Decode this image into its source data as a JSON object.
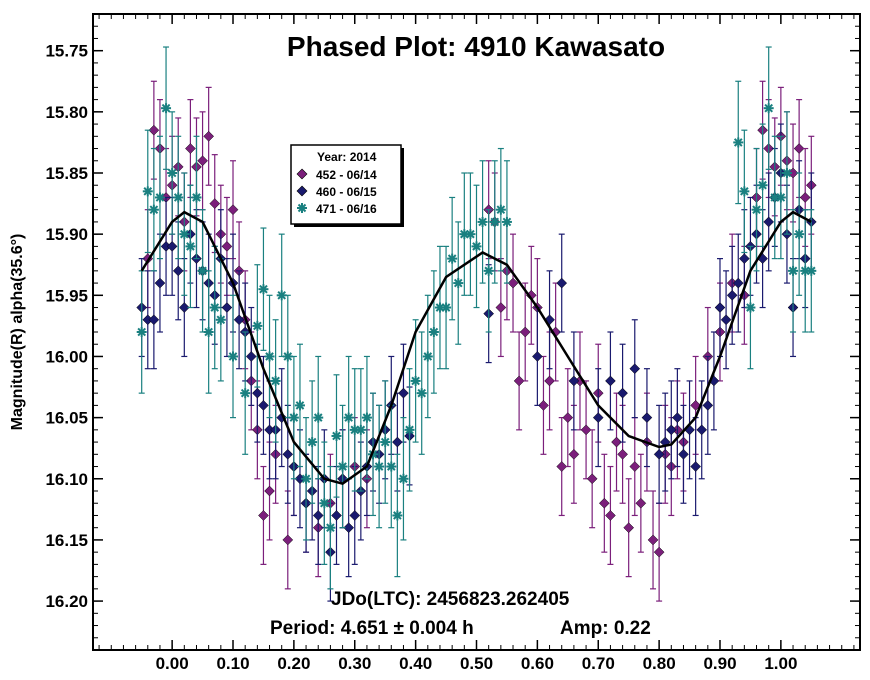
{
  "chart_data": {
    "type": "scatter",
    "title": "Phased Plot: 4910 Kawasato",
    "ylabel": "Magnitude(R) alpha(35.6°)",
    "xlabel": "",
    "xlim": [
      -0.13,
      1.13
    ],
    "ylim": [
      16.24,
      15.72
    ],
    "y_inverted": true,
    "grid": false,
    "x_ticks": [
      "0.00",
      "0.10",
      "0.20",
      "0.30",
      "0.40",
      "0.50",
      "0.60",
      "0.70",
      "0.80",
      "0.90",
      "1.00"
    ],
    "x_tick_values": [
      0.0,
      0.1,
      0.2,
      0.3,
      0.4,
      0.5,
      0.6,
      0.7,
      0.8,
      0.9,
      1.0
    ],
    "y_ticks": [
      "15.75",
      "15.80",
      "15.85",
      "15.90",
      "15.95",
      "16.00",
      "16.05",
      "16.10",
      "16.15",
      "16.20"
    ],
    "y_tick_values": [
      15.75,
      15.8,
      15.85,
      15.9,
      15.95,
      16.0,
      16.05,
      16.1,
      16.15,
      16.2
    ],
    "legend": {
      "title": "Year: 2014",
      "placement": "upper-left",
      "entries": [
        {
          "label": "452 - 06/14",
          "color": "#7b1f7b",
          "marker": "diamond"
        },
        {
          "label": "460 - 06/15",
          "color": "#1a1a6e",
          "marker": "diamond"
        },
        {
          "label": "471 - 06/16",
          "color": "#1a8080",
          "marker": "asterisk"
        }
      ]
    },
    "annotations": {
      "jd": "JDo(LTC): 2456823.262405",
      "period": "Period: 4.651 ± 0.004 h",
      "amp": "Amp: 0.22"
    },
    "fit_curve": {
      "x": [
        -0.05,
        0.0,
        0.02,
        0.05,
        0.1,
        0.15,
        0.2,
        0.25,
        0.28,
        0.32,
        0.36,
        0.4,
        0.45,
        0.51,
        0.55,
        0.6,
        0.65,
        0.7,
        0.75,
        0.8,
        0.82,
        0.86,
        0.9,
        0.95,
        1.0,
        1.02,
        1.05
      ],
      "y": [
        15.93,
        15.89,
        15.882,
        15.89,
        15.94,
        16.01,
        16.07,
        16.1,
        16.104,
        16.09,
        16.04,
        15.98,
        15.935,
        15.915,
        15.925,
        15.96,
        16.0,
        16.04,
        16.065,
        16.074,
        16.072,
        16.05,
        16.0,
        15.93,
        15.89,
        15.882,
        15.89
      ]
    },
    "series": [
      {
        "name": "452 - 06/14",
        "color": "#7b1f7b",
        "marker": "diamond",
        "error": 0.04,
        "points": [
          [
            -0.04,
            15.92
          ],
          [
            -0.03,
            15.815
          ],
          [
            -0.02,
            15.83
          ],
          [
            -0.01,
            15.87
          ],
          [
            0.0,
            15.86
          ],
          [
            0.01,
            15.845
          ],
          [
            0.02,
            15.89
          ],
          [
            0.03,
            15.83
          ],
          [
            0.04,
            15.845
          ],
          [
            0.05,
            15.84
          ],
          [
            0.06,
            15.82
          ],
          [
            0.07,
            15.875
          ],
          [
            0.08,
            15.9
          ],
          [
            0.09,
            15.91
          ],
          [
            0.1,
            15.88
          ],
          [
            0.11,
            15.93
          ],
          [
            0.12,
            15.97
          ],
          [
            0.13,
            16.02
          ],
          [
            0.14,
            16.06
          ],
          [
            0.15,
            16.13
          ],
          [
            0.16,
            16.11
          ],
          [
            0.17,
            16.08
          ],
          [
            0.19,
            16.15
          ],
          [
            0.2,
            16.09
          ],
          [
            0.22,
            16.12
          ],
          [
            0.24,
            16.14
          ],
          [
            0.26,
            16.12
          ],
          [
            0.28,
            16.1
          ],
          [
            0.3,
            16.09
          ],
          [
            0.32,
            16.1
          ],
          [
            0.52,
            15.88
          ],
          [
            0.53,
            15.89
          ],
          [
            0.54,
            15.96
          ],
          [
            0.55,
            15.93
          ],
          [
            0.56,
            15.94
          ],
          [
            0.57,
            16.02
          ],
          [
            0.58,
            15.98
          ],
          [
            0.59,
            15.95
          ],
          [
            0.6,
            15.96
          ],
          [
            0.61,
            16.04
          ],
          [
            0.62,
            16.02
          ],
          [
            0.63,
            15.98
          ],
          [
            0.64,
            16.09
          ],
          [
            0.65,
            16.05
          ],
          [
            0.66,
            16.08
          ],
          [
            0.67,
            16.02
          ],
          [
            0.68,
            16.06
          ],
          [
            0.69,
            16.1
          ],
          [
            0.7,
            16.03
          ],
          [
            0.71,
            16.12
          ],
          [
            0.72,
            16.13
          ],
          [
            0.73,
            16.07
          ],
          [
            0.74,
            16.08
          ],
          [
            0.75,
            16.14
          ],
          [
            0.76,
            16.09
          ],
          [
            0.77,
            16.12
          ],
          [
            0.78,
            16.07
          ],
          [
            0.79,
            16.15
          ],
          [
            0.8,
            16.16
          ],
          [
            0.81,
            16.08
          ],
          [
            0.82,
            16.09
          ],
          [
            0.83,
            16.06
          ],
          [
            0.84,
            16.07
          ],
          [
            0.86,
            16.04
          ],
          [
            0.88,
            16.0
          ],
          [
            0.9,
            15.98
          ],
          [
            0.92,
            15.94
          ],
          [
            0.94,
            15.95
          ],
          [
            0.96,
            15.87
          ],
          [
            0.97,
            15.815
          ],
          [
            0.98,
            15.83
          ],
          [
            0.99,
            15.845
          ],
          [
            1.0,
            15.82
          ],
          [
            1.01,
            15.84
          ],
          [
            1.02,
            15.85
          ],
          [
            1.03,
            15.83
          ],
          [
            1.04,
            15.87
          ],
          [
            1.05,
            15.86
          ]
        ]
      },
      {
        "name": "460 - 06/15",
        "color": "#1a1a6e",
        "marker": "diamond",
        "error": 0.04,
        "points": [
          [
            -0.05,
            15.96
          ],
          [
            -0.04,
            15.97
          ],
          [
            -0.03,
            15.97
          ],
          [
            -0.02,
            15.94
          ],
          [
            -0.01,
            15.91
          ],
          [
            0.0,
            15.91
          ],
          [
            0.01,
            15.93
          ],
          [
            0.02,
            15.96
          ],
          [
            0.03,
            15.9
          ],
          [
            0.04,
            15.92
          ],
          [
            0.05,
            15.93
          ],
          [
            0.06,
            15.94
          ],
          [
            0.07,
            15.95
          ],
          [
            0.08,
            15.92
          ],
          [
            0.09,
            15.96
          ],
          [
            0.1,
            15.94
          ],
          [
            0.11,
            15.97
          ],
          [
            0.12,
            15.98
          ],
          [
            0.13,
            16.0
          ],
          [
            0.14,
            16.03
          ],
          [
            0.15,
            16.04
          ],
          [
            0.16,
            16.06
          ],
          [
            0.17,
            16.06
          ],
          [
            0.18,
            16.05
          ],
          [
            0.19,
            16.08
          ],
          [
            0.2,
            16.09
          ],
          [
            0.21,
            16.1
          ],
          [
            0.22,
            16.12
          ],
          [
            0.23,
            16.11
          ],
          [
            0.24,
            16.13
          ],
          [
            0.25,
            16.1
          ],
          [
            0.26,
            16.16
          ],
          [
            0.27,
            16.13
          ],
          [
            0.28,
            16.1
          ],
          [
            0.29,
            16.14
          ],
          [
            0.3,
            16.13
          ],
          [
            0.31,
            16.11
          ],
          [
            0.32,
            16.09
          ],
          [
            0.33,
            16.07
          ],
          [
            0.34,
            16.08
          ],
          [
            0.35,
            16.06
          ],
          [
            0.36,
            16.04
          ],
          [
            0.37,
            16.07
          ],
          [
            0.38,
            16.03
          ],
          [
            0.39,
            16.065
          ],
          [
            0.52,
            15.965
          ],
          [
            0.6,
            16.0
          ],
          [
            0.62,
            15.97
          ],
          [
            0.64,
            15.94
          ],
          [
            0.66,
            16.02
          ],
          [
            0.7,
            16.05
          ],
          [
            0.72,
            16.02
          ],
          [
            0.74,
            16.03
          ],
          [
            0.76,
            16.01
          ],
          [
            0.78,
            16.05
          ],
          [
            0.8,
            16.08
          ],
          [
            0.81,
            16.07
          ],
          [
            0.82,
            16.06
          ],
          [
            0.83,
            16.05
          ],
          [
            0.84,
            16.08
          ],
          [
            0.85,
            16.06
          ],
          [
            0.86,
            16.09
          ],
          [
            0.87,
            16.06
          ],
          [
            0.88,
            16.04
          ],
          [
            0.89,
            16.02
          ],
          [
            0.9,
            15.96
          ],
          [
            0.91,
            15.97
          ],
          [
            0.92,
            15.95
          ],
          [
            0.93,
            15.94
          ],
          [
            0.94,
            15.92
          ],
          [
            0.95,
            15.91
          ],
          [
            0.96,
            15.9
          ],
          [
            0.97,
            15.92
          ],
          [
            0.98,
            15.89
          ],
          [
            0.99,
            15.87
          ],
          [
            1.0,
            15.85
          ],
          [
            1.01,
            15.9
          ],
          [
            1.02,
            15.96
          ],
          [
            1.03,
            15.88
          ],
          [
            1.04,
            15.92
          ],
          [
            1.05,
            15.89
          ]
        ]
      },
      {
        "name": "471 - 06/16",
        "color": "#1a8080",
        "marker": "asterisk",
        "error": 0.05,
        "points": [
          [
            -0.05,
            15.98
          ],
          [
            -0.04,
            15.865
          ],
          [
            -0.03,
            15.88
          ],
          [
            -0.02,
            15.87
          ],
          [
            -0.01,
            15.797
          ],
          [
            0.0,
            15.85
          ],
          [
            0.01,
            15.87
          ],
          [
            0.02,
            15.9
          ],
          [
            0.03,
            15.91
          ],
          [
            0.04,
            15.87
          ],
          [
            0.05,
            15.93
          ],
          [
            0.06,
            15.98
          ],
          [
            0.07,
            15.96
          ],
          [
            0.08,
            15.97
          ],
          [
            0.1,
            16.0
          ],
          [
            0.12,
            16.03
          ],
          [
            0.14,
            15.975
          ],
          [
            0.15,
            15.945
          ],
          [
            0.16,
            16.0
          ],
          [
            0.17,
            16.02
          ],
          [
            0.18,
            15.95
          ],
          [
            0.19,
            16.0
          ],
          [
            0.2,
            16.05
          ],
          [
            0.21,
            16.04
          ],
          [
            0.22,
            16.1
          ],
          [
            0.23,
            16.07
          ],
          [
            0.24,
            16.05
          ],
          [
            0.25,
            16.12
          ],
          [
            0.26,
            16.14
          ],
          [
            0.27,
            16.065
          ],
          [
            0.28,
            16.09
          ],
          [
            0.29,
            16.05
          ],
          [
            0.3,
            16.06
          ],
          [
            0.31,
            16.06
          ],
          [
            0.32,
            16.05
          ],
          [
            0.33,
            16.08
          ],
          [
            0.34,
            16.09
          ],
          [
            0.35,
            16.07
          ],
          [
            0.36,
            16.09
          ],
          [
            0.37,
            16.13
          ],
          [
            0.38,
            16.1
          ],
          [
            0.39,
            16.06
          ],
          [
            0.4,
            16.02
          ],
          [
            0.41,
            16.03
          ],
          [
            0.42,
            16.0
          ],
          [
            0.43,
            15.98
          ],
          [
            0.44,
            15.96
          ],
          [
            0.45,
            15.96
          ],
          [
            0.46,
            15.92
          ],
          [
            0.47,
            15.94
          ],
          [
            0.48,
            15.9
          ],
          [
            0.49,
            15.9
          ],
          [
            0.5,
            15.91
          ],
          [
            0.51,
            15.89
          ],
          [
            0.52,
            15.93
          ],
          [
            0.53,
            15.89
          ],
          [
            0.54,
            15.88
          ],
          [
            0.55,
            15.89
          ],
          [
            0.93,
            15.825
          ],
          [
            0.94,
            15.865
          ],
          [
            0.95,
            15.96
          ],
          [
            0.96,
            15.88
          ],
          [
            0.97,
            15.86
          ],
          [
            0.98,
            15.797
          ],
          [
            0.99,
            15.87
          ],
          [
            1.0,
            15.87
          ],
          [
            1.01,
            15.85
          ],
          [
            1.02,
            15.93
          ],
          [
            1.03,
            15.9
          ],
          [
            1.04,
            15.93
          ],
          [
            1.05,
            15.93
          ]
        ]
      }
    ]
  }
}
